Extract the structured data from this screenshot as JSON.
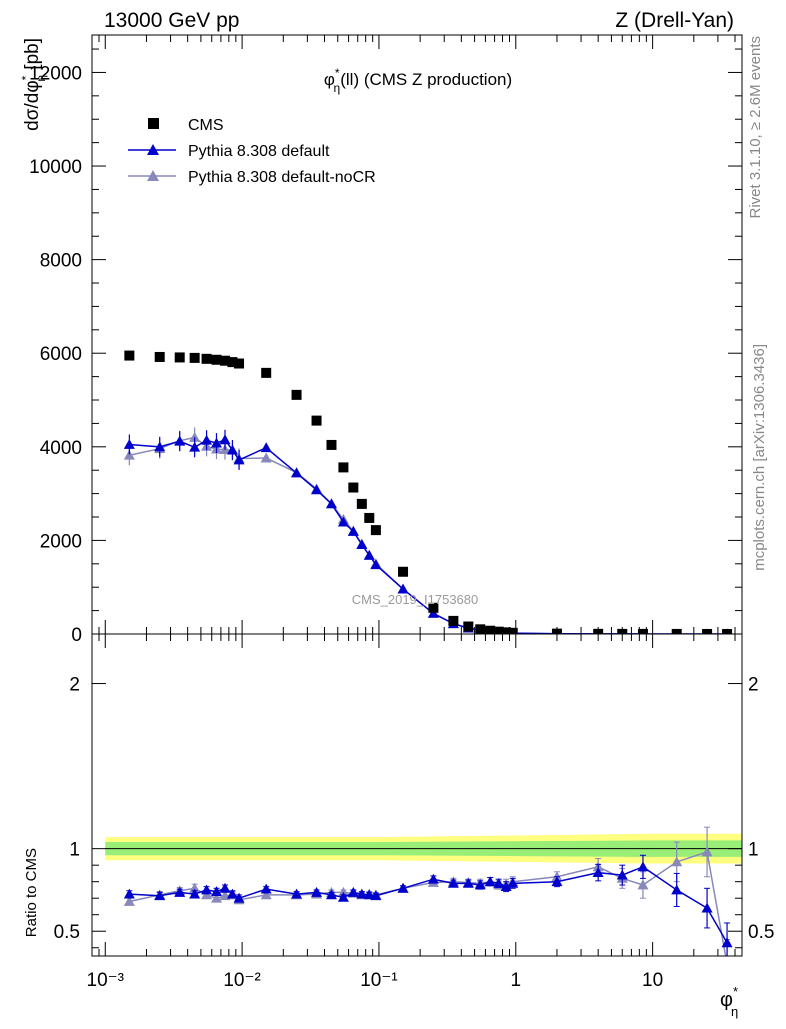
{
  "header": {
    "left": "13000 GeV pp",
    "right": "Z (Drell-Yan)"
  },
  "side_text": {
    "rivet": "Rivet 3.1.10, ≥ 2.6M events",
    "mcplots": "mcplots.cern.ch [arXiv:1306.3436]"
  },
  "watermark": "CMS_2019_I1753680",
  "colors": {
    "cms": "#000000",
    "default": "#0000cc",
    "noCR": "#8888bb",
    "band_outer": "#ffff80",
    "band_inner": "#99ee77"
  },
  "chart_data": [
    {
      "type": "scatter",
      "panel": "main",
      "title": "φ*η(ll) (CMS Z production)",
      "ylabel": "dσ/dφ*η [pb]",
      "xscale": "log",
      "xlim": [
        0.0008,
        45
      ],
      "ylim": [
        0,
        12800
      ],
      "yticks": [
        0,
        2000,
        4000,
        6000,
        8000,
        10000,
        12000
      ],
      "ytick_labels": [
        "0",
        "2000",
        "4000",
        "6000",
        "8000",
        "10000",
        "12000"
      ],
      "legend": {
        "position": "top-left",
        "entries": [
          "CMS",
          "Pythia 8.308 default",
          "Pythia 8.308 default-noCR"
        ]
      },
      "series": [
        {
          "name": "CMS",
          "marker": "square",
          "x": [
            0.0015,
            0.0025,
            0.0035,
            0.0045,
            0.0055,
            0.0065,
            0.0075,
            0.0085,
            0.0095,
            0.015,
            0.025,
            0.035,
            0.045,
            0.055,
            0.065,
            0.075,
            0.085,
            0.095,
            0.15,
            0.25,
            0.35,
            0.45,
            0.55,
            0.65,
            0.75,
            0.85,
            0.95,
            2.0,
            4.0,
            6.0,
            8.5,
            15,
            25,
            35
          ],
          "y": [
            5950,
            5920,
            5910,
            5900,
            5880,
            5860,
            5840,
            5810,
            5780,
            5580,
            5110,
            4560,
            4040,
            3560,
            3130,
            2780,
            2480,
            2220,
            1330,
            560,
            280,
            160,
            100,
            70,
            50,
            35,
            25,
            8,
            3,
            2,
            1.5,
            1,
            0.5,
            0.3
          ]
        },
        {
          "name": "Pythia 8.308 default",
          "marker": "triangle",
          "x": [
            0.0015,
            0.0025,
            0.0035,
            0.0045,
            0.0055,
            0.0065,
            0.0075,
            0.0085,
            0.0095,
            0.015,
            0.025,
            0.035,
            0.045,
            0.055,
            0.065,
            0.075,
            0.085,
            0.095,
            0.15,
            0.25,
            0.35,
            0.45,
            0.55,
            0.65,
            0.75,
            0.85,
            0.95,
            2.0,
            4.0,
            6.0,
            8.5,
            15,
            25,
            35
          ],
          "y": [
            4050,
            4000,
            4120,
            3990,
            4140,
            4080,
            4150,
            3930,
            3720,
            3980,
            3440,
            3080,
            2780,
            2390,
            2190,
            1910,
            1680,
            1480,
            960,
            440,
            220,
            125,
            78,
            55,
            38,
            26,
            18,
            6,
            2.6,
            1.6,
            1.3,
            0.7,
            0.3,
            0.13
          ]
        },
        {
          "name": "Pythia 8.308 default-noCR",
          "marker": "triangle",
          "x": [
            0.0015,
            0.0025,
            0.0035,
            0.0045,
            0.0055,
            0.0065,
            0.0075,
            0.0085,
            0.0095,
            0.015,
            0.025,
            0.035,
            0.045,
            0.055,
            0.065,
            0.075,
            0.085,
            0.095,
            0.15,
            0.25,
            0.35,
            0.45,
            0.55,
            0.65,
            0.75,
            0.85,
            0.95,
            2.0,
            4.0,
            6.0,
            8.5,
            15,
            25,
            35
          ],
          "y": [
            3820,
            3960,
            4130,
            4200,
            4010,
            3950,
            3940,
            3930,
            3750,
            3760,
            3450,
            3100,
            2780,
            2450,
            2200,
            1920,
            1680,
            1500,
            960,
            440,
            220,
            125,
            78,
            55,
            38,
            26,
            18,
            6,
            2.6,
            1.6,
            1.2,
            0.9,
            0.5,
            0.1
          ]
        }
      ]
    },
    {
      "type": "line",
      "panel": "ratio",
      "ylabel": "Ratio to CMS",
      "xscale": "log",
      "xlim": [
        0.0008,
        45
      ],
      "ylim": [
        0.35,
        2.3
      ],
      "yticks": [
        0.5,
        1,
        2
      ],
      "ytick_labels": [
        "0.5",
        "1",
        "2"
      ],
      "xlabel": "φ*η",
      "xticks": [
        0.001,
        0.01,
        0.1,
        1,
        10
      ],
      "xtick_labels": [
        "10⁻³",
        "10⁻²",
        "10⁻¹",
        "1",
        "10"
      ],
      "band": {
        "x": [
          0.001,
          0.01,
          0.1,
          1,
          10,
          45
        ],
        "outer_lo": [
          0.93,
          0.93,
          0.93,
          0.92,
          0.91,
          0.91
        ],
        "outer_hi": [
          1.07,
          1.07,
          1.07,
          1.08,
          1.09,
          1.09
        ],
        "inner_lo": [
          0.96,
          0.96,
          0.96,
          0.955,
          0.95,
          0.95
        ],
        "inner_hi": [
          1.04,
          1.04,
          1.04,
          1.045,
          1.05,
          1.05
        ]
      },
      "series": [
        {
          "name": "Pythia 8.308 default",
          "x": [
            0.0015,
            0.0025,
            0.0035,
            0.0045,
            0.0055,
            0.0065,
            0.0075,
            0.0085,
            0.0095,
            0.015,
            0.025,
            0.035,
            0.045,
            0.055,
            0.065,
            0.075,
            0.085,
            0.095,
            0.15,
            0.25,
            0.35,
            0.45,
            0.55,
            0.65,
            0.75,
            0.85,
            0.95,
            2.0,
            4.0,
            6.0,
            8.5,
            15,
            25,
            35
          ],
          "y": [
            0.725,
            0.715,
            0.735,
            0.725,
            0.75,
            0.74,
            0.76,
            0.725,
            0.7,
            0.755,
            0.725,
            0.735,
            0.72,
            0.705,
            0.735,
            0.725,
            0.72,
            0.715,
            0.76,
            0.815,
            0.79,
            0.79,
            0.78,
            0.8,
            0.79,
            0.77,
            0.79,
            0.8,
            0.855,
            0.84,
            0.89,
            0.75,
            0.64,
            0.43
          ],
          "err": [
            0.02,
            0.02,
            0.02,
            0.02,
            0.02,
            0.02,
            0.02,
            0.02,
            0.02,
            0.015,
            0.015,
            0.015,
            0.015,
            0.015,
            0.015,
            0.015,
            0.015,
            0.015,
            0.015,
            0.02,
            0.02,
            0.02,
            0.025,
            0.025,
            0.025,
            0.03,
            0.03,
            0.03,
            0.05,
            0.06,
            0.07,
            0.1,
            0.12,
            0.12
          ]
        },
        {
          "name": "Pythia 8.308 default-noCR",
          "x": [
            0.0015,
            0.0025,
            0.0035,
            0.0045,
            0.0055,
            0.0065,
            0.0075,
            0.0085,
            0.0095,
            0.015,
            0.025,
            0.035,
            0.045,
            0.055,
            0.065,
            0.075,
            0.085,
            0.095,
            0.15,
            0.25,
            0.35,
            0.45,
            0.55,
            0.65,
            0.75,
            0.85,
            0.95,
            2.0,
            4.0,
            6.0,
            8.5,
            15,
            25,
            35
          ],
          "y": [
            0.68,
            0.72,
            0.745,
            0.76,
            0.72,
            0.7,
            0.715,
            0.72,
            0.69,
            0.72,
            0.72,
            0.725,
            0.735,
            0.735,
            0.73,
            0.72,
            0.725,
            0.72,
            0.76,
            0.795,
            0.8,
            0.795,
            0.79,
            0.8,
            0.78,
            0.785,
            0.8,
            0.83,
            0.89,
            0.82,
            0.78,
            0.92,
            0.98,
            0.3
          ],
          "err": [
            0.02,
            0.02,
            0.02,
            0.025,
            0.02,
            0.02,
            0.02,
            0.02,
            0.02,
            0.015,
            0.015,
            0.015,
            0.015,
            0.015,
            0.015,
            0.015,
            0.015,
            0.015,
            0.015,
            0.02,
            0.02,
            0.02,
            0.025,
            0.025,
            0.025,
            0.03,
            0.03,
            0.03,
            0.05,
            0.06,
            0.08,
            0.12,
            0.15,
            0.15
          ]
        }
      ]
    }
  ]
}
